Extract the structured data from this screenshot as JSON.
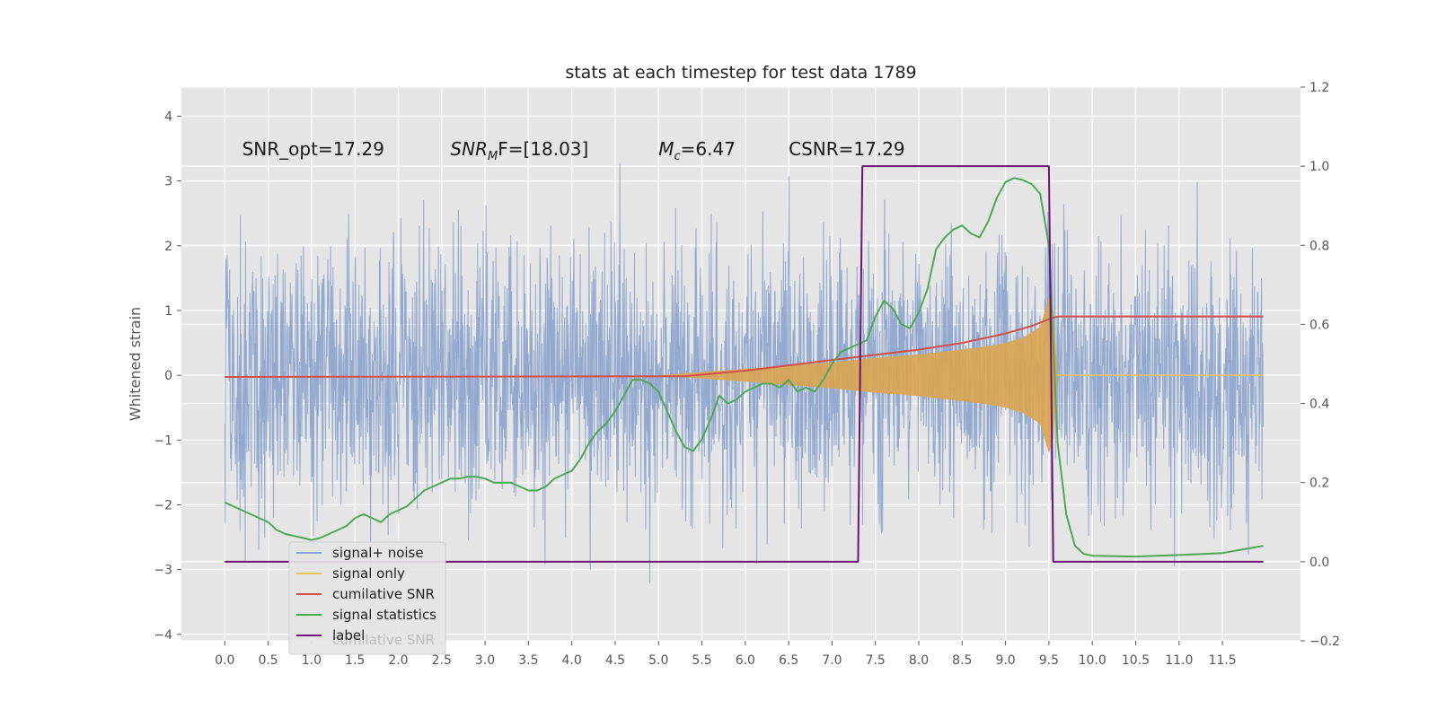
{
  "chart_data": {
    "type": "line",
    "title": "stats at each timestep for test data 1789",
    "ylabel": "Whitened strain",
    "xlim": [
      -0.5,
      12.4
    ],
    "ylim": [
      -4.1,
      4.45
    ],
    "y2lim": [
      -0.2,
      1.2
    ],
    "x_ticks": [
      "0.0",
      "0.5",
      "1.0",
      "1.5",
      "2.0",
      "2.5",
      "3.0",
      "3.5",
      "4.0",
      "4.5",
      "5.0",
      "5.5",
      "6.0",
      "6.5",
      "7.0",
      "7.5",
      "8.0",
      "8.5",
      "9.0",
      "9.5",
      "10.0",
      "10.5",
      "11.0",
      "11.5"
    ],
    "y_ticks": [
      "4",
      "3",
      "2",
      "1",
      "0",
      "−1",
      "−2",
      "−3",
      "−4"
    ],
    "y2_ticks": [
      "1.2",
      "1.0",
      "0.8",
      "0.6",
      "0.4",
      "0.2",
      "0.0",
      "−0.2"
    ],
    "grid": true,
    "legend_position": "lower-left",
    "annotations": [
      {
        "text": "SNR_opt=17.29",
        "x": 0.2,
        "y": 3.4
      },
      {
        "pre": "SNR",
        "sub": "M",
        "post": "F=[18.03]",
        "x": 2.6,
        "y": 3.4
      },
      {
        "pre": "M",
        "sub": "c",
        "post": "=6.47",
        "x": 5.0,
        "y": 3.4
      },
      {
        "text": "CSNR=17.29",
        "x": 6.5,
        "y": 3.4
      }
    ],
    "series": [
      {
        "name": "signal+ noise",
        "color": "#8fa5cf",
        "axis": "left",
        "noise_amplitude": 2.3,
        "x_range": [
          0.0,
          11.97
        ]
      },
      {
        "name": "signal only",
        "color": "#e9c35a",
        "fill": "#d9a552",
        "axis": "left",
        "x": [
          0.0,
          5.0,
          5.5,
          6.0,
          6.5,
          7.0,
          7.5,
          8.0,
          8.5,
          8.8,
          9.0,
          9.2,
          9.4,
          9.5,
          9.55,
          9.6,
          11.97
        ],
        "envelope": [
          0.0,
          0.0,
          0.05,
          0.1,
          0.15,
          0.2,
          0.27,
          0.32,
          0.4,
          0.45,
          0.5,
          0.58,
          0.75,
          1.2,
          1.0,
          0.0,
          0.0
        ]
      },
      {
        "name": "cumilative SNR",
        "color": "#d1514a",
        "axis": "right",
        "x": [
          0.0,
          5.0,
          5.3,
          6.0,
          7.0,
          8.0,
          8.5,
          9.0,
          9.3,
          9.5,
          9.6,
          11.97
        ],
        "values": [
          0.467,
          0.469,
          0.469,
          0.483,
          0.51,
          0.536,
          0.553,
          0.577,
          0.596,
          0.613,
          0.62,
          0.62
        ]
      },
      {
        "name": "signal statistics",
        "color": "#4fa857",
        "axis": "right",
        "x": [
          0.0,
          0.1,
          0.2,
          0.3,
          0.4,
          0.5,
          0.6,
          0.7,
          0.8,
          0.9,
          1.0,
          1.1,
          1.2,
          1.3,
          1.4,
          1.5,
          1.6,
          1.7,
          1.8,
          1.9,
          2.0,
          2.1,
          2.2,
          2.3,
          2.4,
          2.5,
          2.6,
          2.7,
          2.8,
          2.9,
          3.0,
          3.1,
          3.2,
          3.3,
          3.4,
          3.5,
          3.6,
          3.7,
          3.8,
          3.9,
          4.0,
          4.1,
          4.2,
          4.3,
          4.4,
          4.5,
          4.6,
          4.7,
          4.8,
          4.9,
          5.0,
          5.1,
          5.2,
          5.3,
          5.4,
          5.5,
          5.6,
          5.7,
          5.8,
          5.9,
          6.0,
          6.1,
          6.2,
          6.3,
          6.4,
          6.5,
          6.6,
          6.7,
          6.8,
          6.9,
          7.0,
          7.1,
          7.2,
          7.3,
          7.4,
          7.5,
          7.6,
          7.7,
          7.8,
          7.9,
          8.0,
          8.1,
          8.2,
          8.3,
          8.4,
          8.5,
          8.6,
          8.7,
          8.8,
          8.9,
          9.0,
          9.1,
          9.2,
          9.3,
          9.4,
          9.5,
          9.6,
          9.7,
          9.8,
          9.9,
          10.0,
          10.5,
          11.0,
          11.5,
          11.97
        ],
        "values": [
          0.15,
          0.14,
          0.13,
          0.12,
          0.11,
          0.1,
          0.08,
          0.07,
          0.065,
          0.06,
          0.055,
          0.06,
          0.07,
          0.08,
          0.09,
          0.11,
          0.12,
          0.11,
          0.1,
          0.12,
          0.13,
          0.14,
          0.16,
          0.18,
          0.19,
          0.2,
          0.21,
          0.21,
          0.215,
          0.215,
          0.21,
          0.2,
          0.2,
          0.2,
          0.19,
          0.18,
          0.18,
          0.19,
          0.21,
          0.22,
          0.23,
          0.26,
          0.3,
          0.33,
          0.35,
          0.38,
          0.42,
          0.46,
          0.46,
          0.45,
          0.43,
          0.38,
          0.33,
          0.29,
          0.28,
          0.31,
          0.36,
          0.42,
          0.4,
          0.41,
          0.43,
          0.44,
          0.45,
          0.45,
          0.44,
          0.46,
          0.43,
          0.44,
          0.43,
          0.46,
          0.5,
          0.53,
          0.54,
          0.55,
          0.56,
          0.62,
          0.66,
          0.64,
          0.6,
          0.59,
          0.63,
          0.69,
          0.79,
          0.82,
          0.84,
          0.85,
          0.83,
          0.82,
          0.86,
          0.92,
          0.96,
          0.97,
          0.965,
          0.955,
          0.93,
          0.8,
          0.3,
          0.12,
          0.04,
          0.02,
          0.015,
          0.013,
          0.017,
          0.022,
          0.04
        ]
      },
      {
        "name": "label",
        "color": "#6e1274",
        "axis": "right",
        "x": [
          0.0,
          7.3,
          7.35,
          9.5,
          9.55,
          11.97
        ],
        "values": [
          0.0,
          0.0,
          1.0,
          1.0,
          0.0,
          0.0
        ]
      },
      {
        "name": "cumilative SNR",
        "color": "#aaaaaa",
        "axis": "right",
        "hidden": true
      }
    ]
  }
}
